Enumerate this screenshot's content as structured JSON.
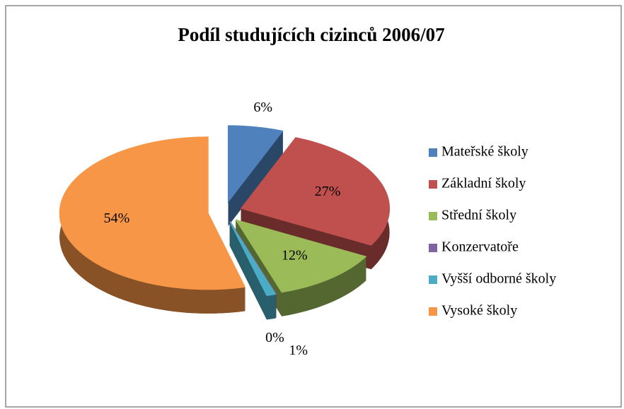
{
  "chart_data": {
    "type": "pie",
    "title": "Podíl studujících cizinců 2006/07",
    "categories": [
      "Mateřské školy",
      "Základní školy",
      "Střední školy",
      "Konzervatoře",
      "Vyšší odborné školy",
      "Vysoké školy"
    ],
    "values": [
      6,
      27,
      12,
      0,
      1,
      54
    ],
    "value_labels": [
      "6%",
      "27%",
      "12%",
      "0%",
      "1%",
      "54%"
    ],
    "colors": [
      "#4f81bd",
      "#c0504d",
      "#9bbb59",
      "#8064a2",
      "#4bacc6",
      "#f79646"
    ],
    "legend": "right"
  }
}
